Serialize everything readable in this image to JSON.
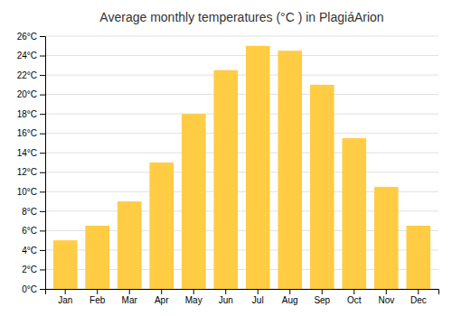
{
  "chart_data": {
    "type": "bar",
    "title": "Average monthly temperatures (°C ) in PlagiáArion",
    "categories": [
      "Jan",
      "Feb",
      "Mar",
      "Apr",
      "May",
      "Jun",
      "Jul",
      "Aug",
      "Sep",
      "Oct",
      "Nov",
      "Dec"
    ],
    "values": [
      5.0,
      6.5,
      9.0,
      13.0,
      18.0,
      22.5,
      25.0,
      24.5,
      21.0,
      15.5,
      10.5,
      6.5
    ],
    "color": "#FFCC44",
    "ylim": [
      0,
      26
    ],
    "yticks": [
      {
        "value": 0,
        "label": "0°C"
      },
      {
        "value": 2,
        "label": "2°C"
      },
      {
        "value": 4,
        "label": "4°C"
      },
      {
        "value": 6,
        "label": "6°C"
      },
      {
        "value": 8,
        "label": "8°C"
      },
      {
        "value": 10,
        "label": "10°C"
      },
      {
        "value": 12,
        "label": "12°C"
      },
      {
        "value": 14,
        "label": "14°C"
      },
      {
        "value": 16,
        "label": "16°C"
      },
      {
        "value": 18,
        "label": "18°C"
      },
      {
        "value": 20,
        "label": "20°C"
      },
      {
        "value": 22,
        "label": "22°C"
      },
      {
        "value": 24,
        "label": "24°C"
      },
      {
        "value": 26,
        "label": "26°C"
      }
    ],
    "grid": true
  }
}
